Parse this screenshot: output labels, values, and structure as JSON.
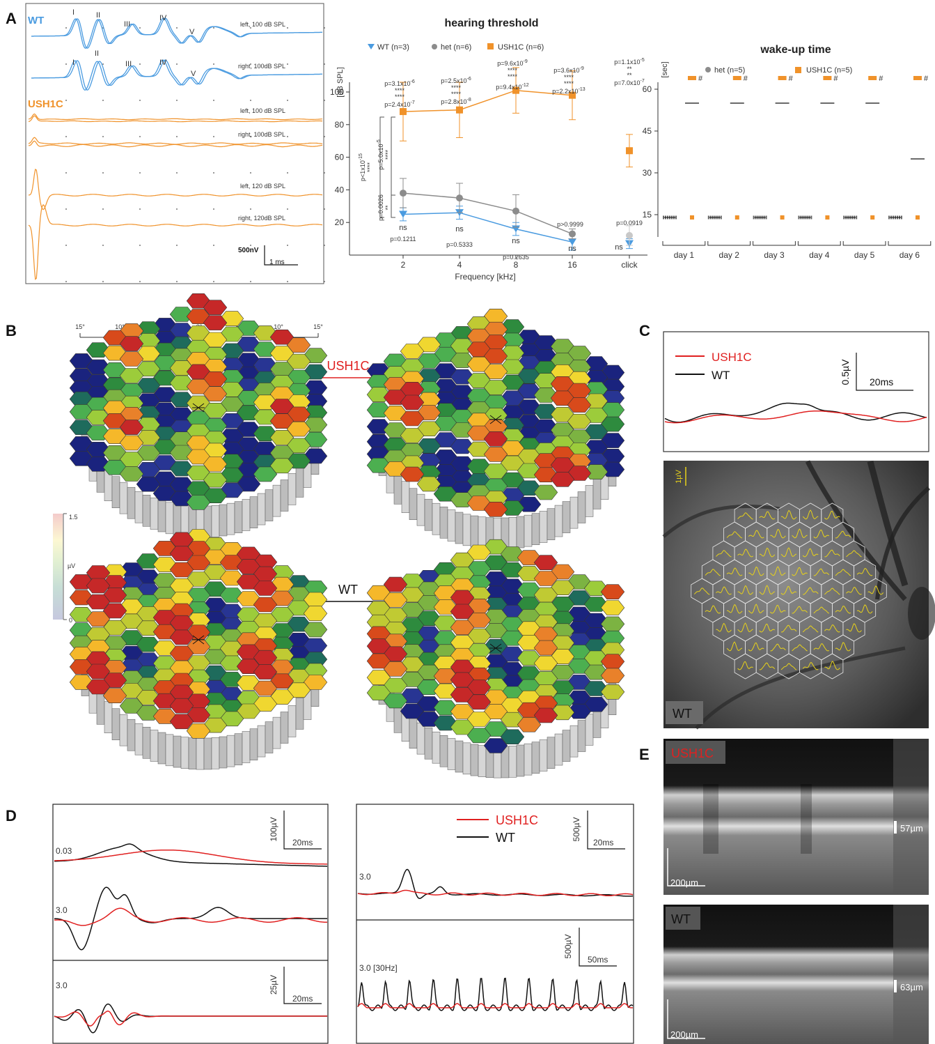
{
  "colors": {
    "wt_blue": "#4a9be0",
    "ush1c_orange": "#f0922a",
    "het_gray": "#8c8c8c",
    "red": "#e02020",
    "black": "#111111",
    "trace_yellow": "#e8d21a"
  },
  "panels": {
    "a": "A",
    "b": "B",
    "c": "C",
    "d": "D",
    "e": "E"
  },
  "panelA_abr": {
    "wt_label": "WT",
    "ush1c_label": "USH1C",
    "wave_labels": [
      "I",
      "II",
      "III",
      "IV",
      "V"
    ],
    "traces": [
      {
        "label": "left, 100 dB SPL"
      },
      {
        "label": "right, 100dB SPL"
      },
      {
        "label": "left, 100 dB SPL"
      },
      {
        "label": "right, 100dB SPL"
      },
      {
        "label": "left, 120 dB SPL"
      },
      {
        "label": "right, 120dB SPL"
      }
    ],
    "scale_v": "500nV",
    "scale_t": "1 ms"
  },
  "chart_data": [
    {
      "type": "line",
      "title": "hearing threshold",
      "xlabel": "Frequency [kHz]",
      "ylabel": "[dB SPL]",
      "categories": [
        "2",
        "4",
        "8",
        "16",
        "click"
      ],
      "ylim": [
        0,
        110
      ],
      "yticks": [
        20,
        40,
        60,
        80,
        100
      ],
      "series": [
        {
          "name": "WT (n=3)",
          "values": [
            25,
            26,
            16,
            8,
            7
          ],
          "err": [
            4,
            4,
            4,
            5,
            3
          ]
        },
        {
          "name": "het (n=6)",
          "values": [
            38,
            35,
            27,
            13,
            12
          ],
          "err": [
            9,
            9,
            10,
            3,
            6
          ]
        },
        {
          "name": "USH1C (n=6)",
          "values": [
            88,
            89,
            101,
            98,
            64
          ],
          "err": [
            18,
            17,
            14,
            15,
            10
          ]
        }
      ],
      "pvalues_top": [
        {
          "upper": "p=3.1x10",
          "upper_exp": "-6",
          "lower": "p=2.4x10",
          "lower_exp": "-7"
        },
        {
          "upper": "p=2.5x10",
          "upper_exp": "-6",
          "lower": "p=2.8x10",
          "lower_exp": "-8"
        },
        {
          "upper": "p=9.6x10",
          "upper_exp": "-9",
          "lower": "p=9.4x10",
          "lower_exp": "-12"
        },
        {
          "upper": "p=3.6x10",
          "upper_exp": "-9",
          "lower": "p=2.2x10",
          "lower_exp": "-13"
        },
        {
          "upper": "p=1.1x10",
          "upper_exp": "-5",
          "lower": "p=7.0x10",
          "lower_exp": "-7"
        }
      ],
      "stars_top": [
        "****",
        "****",
        "****",
        "****",
        "**"
      ],
      "stars_top_orange": [
        "****",
        "****",
        "****",
        "****",
        "**"
      ],
      "pvalues_bottom": [
        "p=0.1211",
        "p=0.5333",
        "p=0.2635",
        "p>0.9999",
        "p=0.0919"
      ],
      "ns_label": "ns",
      "bracket_labels": {
        "outer": "p<1x10",
        "outer_exp": "-15",
        "mid": "p=5.0x10",
        "mid_exp": "-5",
        "inner": "p=0.0026",
        "outer_stars": "****",
        "mid_stars": "****",
        "inner_stars": "**"
      }
    },
    {
      "type": "scatter",
      "title": "wake-up time",
      "ylabel": "[sec]",
      "categories": [
        "day 1",
        "day 2",
        "day 3",
        "day 4",
        "day 5",
        "day 6"
      ],
      "ylim": [
        0,
        70
      ],
      "yticks": [
        15,
        30,
        45,
        60
      ],
      "series": [
        {
          "name": "het (n=5)",
          "values": [
            14,
            14,
            14,
            14,
            14,
            14
          ]
        },
        {
          "name": "USH1C (n=5)",
          "values": [
            64,
            64,
            64,
            64,
            64,
            64
          ]
        }
      ],
      "medians_het": [
        14,
        14,
        14,
        14,
        14,
        14
      ],
      "medians_ush1c": [
        55,
        55,
        55,
        55,
        55,
        35
      ],
      "marker": "#"
    }
  ],
  "panelB": {
    "scale_ticks": [
      "15°",
      "10°",
      "5°",
      "0°",
      "5°",
      "10°",
      "15°"
    ],
    "ush1c_label": "USH1C",
    "wt_label": "WT",
    "colorbar_top": "1.5",
    "colorbar_mid": "µV",
    "colorbar_bottom": "0"
  },
  "panelC": {
    "legend_ush1c": "USH1C",
    "legend_wt": "WT",
    "scale_v": "0.5µV",
    "scale_t": "20ms",
    "fundus_scale": "1µV",
    "fundus_label": "WT"
  },
  "panelD": {
    "labels_left": [
      "0.03",
      "3.0",
      "3.0"
    ],
    "scales_left": [
      {
        "v": "100µV",
        "t": "20ms"
      },
      {
        "v": "25µV",
        "t": "20ms"
      }
    ],
    "legend_ush1c": "USH1C",
    "legend_wt": "WT",
    "labels_right": [
      "3.0",
      "3.0 [30Hz]"
    ],
    "scales_right": [
      {
        "v": "500µV",
        "t": "20ms"
      },
      {
        "v": "500µV",
        "t": "50ms"
      }
    ]
  },
  "panelE": {
    "ush1c_label": "USH1C",
    "ush1c_thickness": "57µm",
    "wt_label": "WT",
    "wt_thickness": "63µm",
    "scale": "200µm"
  }
}
